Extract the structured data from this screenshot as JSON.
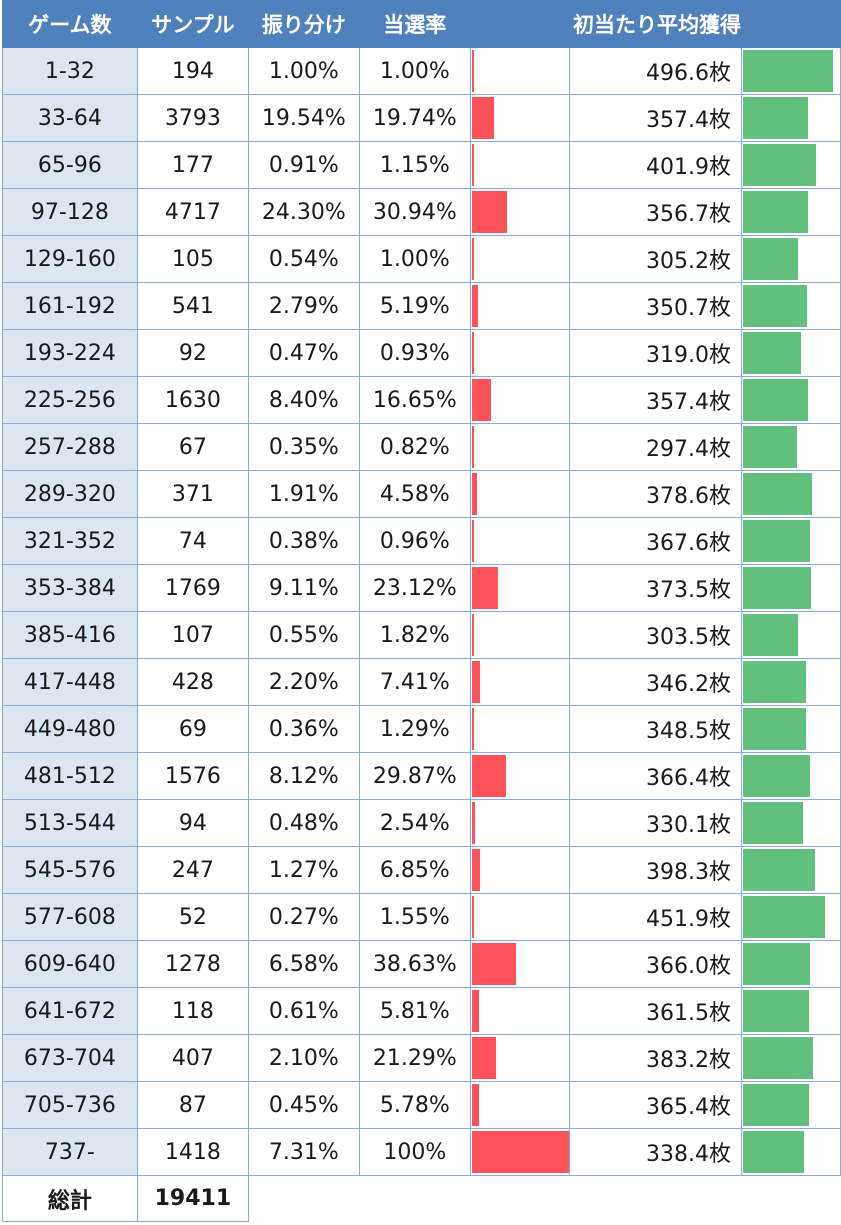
{
  "chart_data": {
    "type": "table",
    "columns": [
      "ゲーム数",
      "サンプル",
      "振り分け",
      "当選率",
      "",
      "初当たり平均獲得",
      ""
    ],
    "rows": [
      {
        "range": "1-32",
        "sample": "194",
        "share": "1.00%",
        "hit_rate": "1.00%",
        "hit_value": 1.0,
        "avg": "496.6枚",
        "avg_value": 496.6
      },
      {
        "range": "33-64",
        "sample": "3793",
        "share": "19.54%",
        "hit_rate": "19.74%",
        "hit_value": 19.74,
        "avg": "357.4枚",
        "avg_value": 357.4
      },
      {
        "range": "65-96",
        "sample": "177",
        "share": "0.91%",
        "hit_rate": "1.15%",
        "hit_value": 1.15,
        "avg": "401.9枚",
        "avg_value": 401.9
      },
      {
        "range": "97-128",
        "sample": "4717",
        "share": "24.30%",
        "hit_rate": "30.94%",
        "hit_value": 30.94,
        "avg": "356.7枚",
        "avg_value": 356.7
      },
      {
        "range": "129-160",
        "sample": "105",
        "share": "0.54%",
        "hit_rate": "1.00%",
        "hit_value": 1.0,
        "avg": "305.2枚",
        "avg_value": 305.2
      },
      {
        "range": "161-192",
        "sample": "541",
        "share": "2.79%",
        "hit_rate": "5.19%",
        "hit_value": 5.19,
        "avg": "350.7枚",
        "avg_value": 350.7
      },
      {
        "range": "193-224",
        "sample": "92",
        "share": "0.47%",
        "hit_rate": "0.93%",
        "hit_value": 0.93,
        "avg": "319.0枚",
        "avg_value": 319.0
      },
      {
        "range": "225-256",
        "sample": "1630",
        "share": "8.40%",
        "hit_rate": "16.65%",
        "hit_value": 16.65,
        "avg": "357.4枚",
        "avg_value": 357.4
      },
      {
        "range": "257-288",
        "sample": "67",
        "share": "0.35%",
        "hit_rate": "0.82%",
        "hit_value": 0.82,
        "avg": "297.4枚",
        "avg_value": 297.4
      },
      {
        "range": "289-320",
        "sample": "371",
        "share": "1.91%",
        "hit_rate": "4.58%",
        "hit_value": 4.58,
        "avg": "378.6枚",
        "avg_value": 378.6
      },
      {
        "range": "321-352",
        "sample": "74",
        "share": "0.38%",
        "hit_rate": "0.96%",
        "hit_value": 0.96,
        "avg": "367.6枚",
        "avg_value": 367.6
      },
      {
        "range": "353-384",
        "sample": "1769",
        "share": "9.11%",
        "hit_rate": "23.12%",
        "hit_value": 23.12,
        "avg": "373.5枚",
        "avg_value": 373.5
      },
      {
        "range": "385-416",
        "sample": "107",
        "share": "0.55%",
        "hit_rate": "1.82%",
        "hit_value": 1.82,
        "avg": "303.5枚",
        "avg_value": 303.5
      },
      {
        "range": "417-448",
        "sample": "428",
        "share": "2.20%",
        "hit_rate": "7.41%",
        "hit_value": 7.41,
        "avg": "346.2枚",
        "avg_value": 346.2
      },
      {
        "range": "449-480",
        "sample": "69",
        "share": "0.36%",
        "hit_rate": "1.29%",
        "hit_value": 1.29,
        "avg": "348.5枚",
        "avg_value": 348.5
      },
      {
        "range": "481-512",
        "sample": "1576",
        "share": "8.12%",
        "hit_rate": "29.87%",
        "hit_value": 29.87,
        "avg": "366.4枚",
        "avg_value": 366.4
      },
      {
        "range": "513-544",
        "sample": "94",
        "share": "0.48%",
        "hit_rate": "2.54%",
        "hit_value": 2.54,
        "avg": "330.1枚",
        "avg_value": 330.1
      },
      {
        "range": "545-576",
        "sample": "247",
        "share": "1.27%",
        "hit_rate": "6.85%",
        "hit_value": 6.85,
        "avg": "398.3枚",
        "avg_value": 398.3
      },
      {
        "range": "577-608",
        "sample": "52",
        "share": "0.27%",
        "hit_rate": "1.55%",
        "hit_value": 1.55,
        "avg": "451.9枚",
        "avg_value": 451.9
      },
      {
        "range": "609-640",
        "sample": "1278",
        "share": "6.58%",
        "hit_rate": "38.63%",
        "hit_value": 38.63,
        "avg": "366.0枚",
        "avg_value": 366.0
      },
      {
        "range": "641-672",
        "sample": "118",
        "share": "0.61%",
        "hit_rate": "5.81%",
        "hit_value": 5.81,
        "avg": "361.5枚",
        "avg_value": 361.5
      },
      {
        "range": "673-704",
        "sample": "407",
        "share": "2.10%",
        "hit_rate": "21.29%",
        "hit_value": 21.29,
        "avg": "383.2枚",
        "avg_value": 383.2
      },
      {
        "range": "705-736",
        "sample": "87",
        "share": "0.45%",
        "hit_rate": "5.78%",
        "hit_value": 5.78,
        "avg": "365.4枚",
        "avg_value": 365.4
      },
      {
        "range": "737-",
        "sample": "1418",
        "share": "7.31%",
        "hit_rate": "100%",
        "hit_value": 100,
        "avg": "338.4枚",
        "avg_value": 338.4
      }
    ],
    "total": {
      "label": "総計",
      "sample": "19411"
    },
    "colors": {
      "header": "#4f81bd",
      "range_cell": "#dce6f1",
      "hit_bar": "#fe525a",
      "avg_bar": "#62c07e",
      "border": "#8eaadb"
    }
  }
}
